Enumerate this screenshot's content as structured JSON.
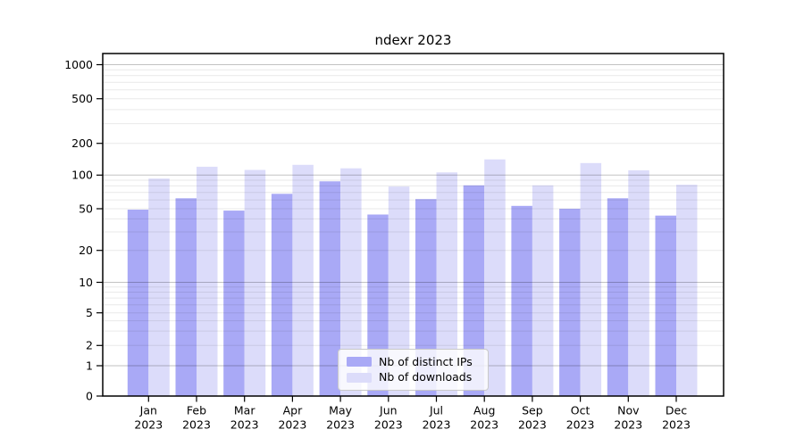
{
  "chart_data": {
    "type": "bar",
    "title": "ndexr 2023",
    "categories": [
      "Jan",
      "Feb",
      "Mar",
      "Apr",
      "May",
      "Jun",
      "Jul",
      "Aug",
      "Sep",
      "Oct",
      "Nov",
      "Dec"
    ],
    "x_tick_year": "2023",
    "series": [
      {
        "name": "Nb of distinct IPs",
        "color": "#a9a9f6",
        "values": [
          49,
          62,
          48,
          68,
          88,
          44,
          61,
          81,
          53,
          50,
          62,
          43
        ]
      },
      {
        "name": "Nb of downloads",
        "color": "#dcdcfa",
        "values": [
          93,
          120,
          112,
          125,
          116,
          79,
          106,
          141,
          81,
          130,
          111,
          82
        ]
      }
    ],
    "yscale": "symlog",
    "ylim": [
      0,
      1300
    ],
    "y_ticks": [
      1000,
      500,
      200,
      100,
      50,
      20,
      10,
      5,
      2,
      1,
      0
    ],
    "y_major_gridlines": [
      1,
      10,
      100,
      1000
    ],
    "y_minor_gridlines": [
      2,
      3,
      4,
      5,
      6,
      7,
      8,
      9,
      20,
      30,
      40,
      50,
      60,
      70,
      80,
      90,
      200,
      300,
      400,
      500,
      600,
      700,
      800,
      900
    ],
    "grid": true,
    "legend_position": "lower center"
  },
  "colors": {
    "background": "#ffffff",
    "axis": "#000000",
    "grid_major": "rgba(0,0,0,0.24)",
    "grid_minor": "rgba(0,0,0,0.085)",
    "tick_label": "#000000"
  }
}
